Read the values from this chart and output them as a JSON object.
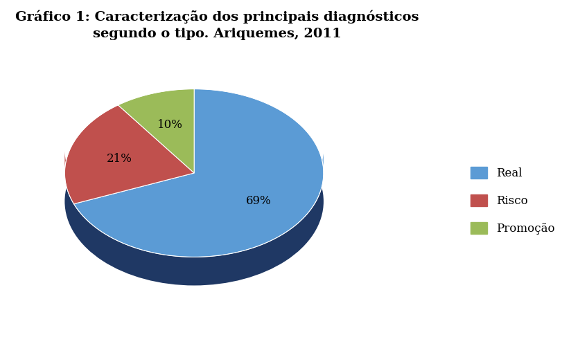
{
  "title": "Gráfico 1: Caracterização dos principais diagnósticos\nsegundo o tipo. Ariquemes, 2011",
  "slices": [
    69,
    21,
    10
  ],
  "labels": [
    "Real",
    "Risco",
    "Promoção"
  ],
  "colors": [
    "#5B9BD5",
    "#C0504D",
    "#9BBB59"
  ],
  "pct_labels": [
    "69%",
    "21%",
    "10%"
  ],
  "title_fontsize": 14,
  "legend_fontsize": 12,
  "background_color": "#FFFFFF",
  "startangle": 90,
  "dark_color": "#1F3864",
  "depth": 0.18
}
